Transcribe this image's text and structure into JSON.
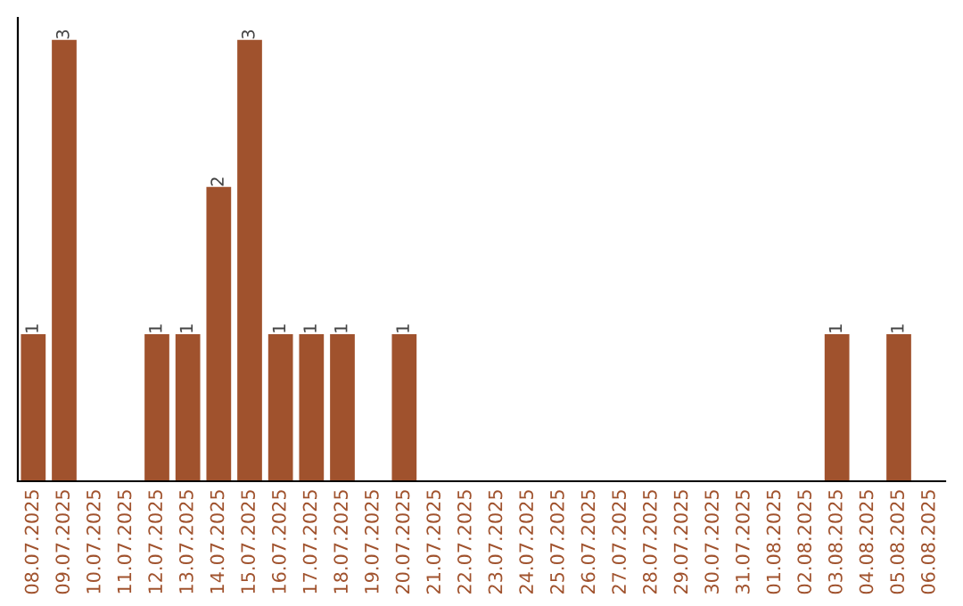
{
  "chart_data": {
    "type": "bar",
    "categories": [
      "08.07.2025",
      "09.07.2025",
      "10.07.2025",
      "11.07.2025",
      "12.07.2025",
      "13.07.2025",
      "14.07.2025",
      "15.07.2025",
      "16.07.2025",
      "17.07.2025",
      "18.07.2025",
      "19.07.2025",
      "20.07.2025",
      "21.07.2025",
      "22.07.2025",
      "23.07.2025",
      "24.07.2025",
      "25.07.2025",
      "26.07.2025",
      "27.07.2025",
      "28.07.2025",
      "29.07.2025",
      "30.07.2025",
      "31.07.2025",
      "01.08.2025",
      "02.08.2025",
      "03.08.2025",
      "04.08.2025",
      "05.08.2025",
      "06.08.2025"
    ],
    "values": [
      1,
      3,
      0,
      0,
      1,
      1,
      2,
      3,
      1,
      1,
      1,
      0,
      1,
      0,
      0,
      0,
      0,
      0,
      0,
      0,
      0,
      0,
      0,
      0,
      0,
      0,
      1,
      0,
      1,
      0
    ],
    "value_labels": [
      "1",
      "3",
      null,
      null,
      "1",
      "1",
      "2",
      "3",
      "1",
      "1",
      "1",
      null,
      "1",
      null,
      null,
      null,
      null,
      null,
      null,
      null,
      null,
      null,
      null,
      null,
      null,
      null,
      "1",
      null,
      "1",
      null
    ],
    "color": "#a0522d",
    "tick_labels": "x",
    "grid": false
  }
}
